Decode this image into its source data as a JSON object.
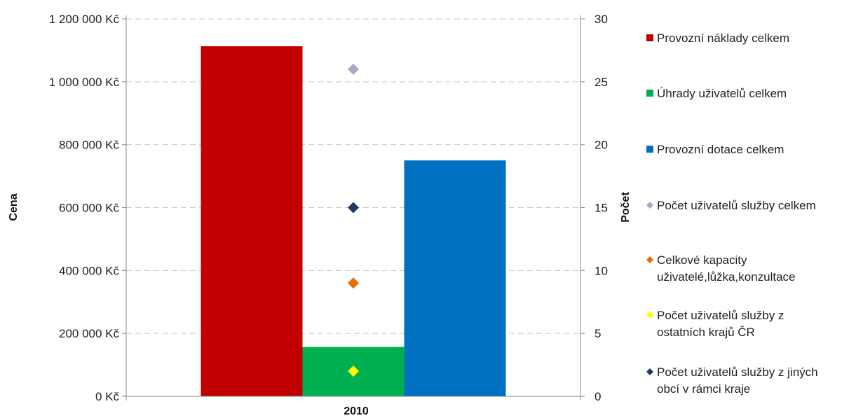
{
  "chart_data": {
    "type": "bar",
    "categories": [
      "2010"
    ],
    "y_left": {
      "label": "Cena",
      "min": 0,
      "max": 1200000,
      "step": 200000,
      "tick_labels": [
        "0 Kč",
        "200 000 Kč",
        "400 000 Kč",
        "600 000 Kč",
        "800 000 Kč",
        "1 000 000 Kč",
        "1 200 000 Kč"
      ]
    },
    "y_right": {
      "label": "Počet",
      "min": 0,
      "max": 30,
      "step": 5,
      "tick_labels": [
        "0",
        "5",
        "10",
        "15",
        "20",
        "25",
        "30"
      ]
    },
    "grid": "horizontal dashed",
    "legend_position": "right",
    "series": [
      {
        "name": "Provozní náklady celkem",
        "kind": "bar",
        "axis": "left",
        "color": "#c00000",
        "values": [
          1113000
        ]
      },
      {
        "name": "Úhrady uživatelů celkem",
        "kind": "bar",
        "axis": "left",
        "color": "#00b050",
        "values": [
          157000
        ]
      },
      {
        "name": "Provozní dotace celkem",
        "kind": "bar",
        "axis": "left",
        "color": "#0070c0",
        "values": [
          750000
        ]
      },
      {
        "name": "Počet uživatelů služby celkem",
        "kind": "marker",
        "axis": "right",
        "color": "#b3a2c7",
        "values": [
          26
        ]
      },
      {
        "name": "Celkové kapacity uživatelé,lůžka,konzultace",
        "legend_lines": [
          "Celkové kapacity",
          "uživatelé,lůžka,konzultace"
        ],
        "kind": "marker",
        "axis": "right",
        "color": "#e46c0a",
        "values": [
          9
        ]
      },
      {
        "name": "Počet uživatelů služby z ostatních krajů ČR",
        "legend_lines": [
          "Počet uživatelů služby z",
          "ostatních krajů ČR"
        ],
        "kind": "marker",
        "axis": "right",
        "color": "#ffff00",
        "values": [
          2
        ]
      },
      {
        "name": "Počet uživatelů služby z jiných obcí v rámci kraje",
        "legend_lines": [
          "Počet uživatelů služby z jiných",
          "obcí v rámci kraje"
        ],
        "kind": "marker",
        "axis": "right",
        "color": "#1f3864",
        "values": [
          15
        ]
      }
    ]
  }
}
